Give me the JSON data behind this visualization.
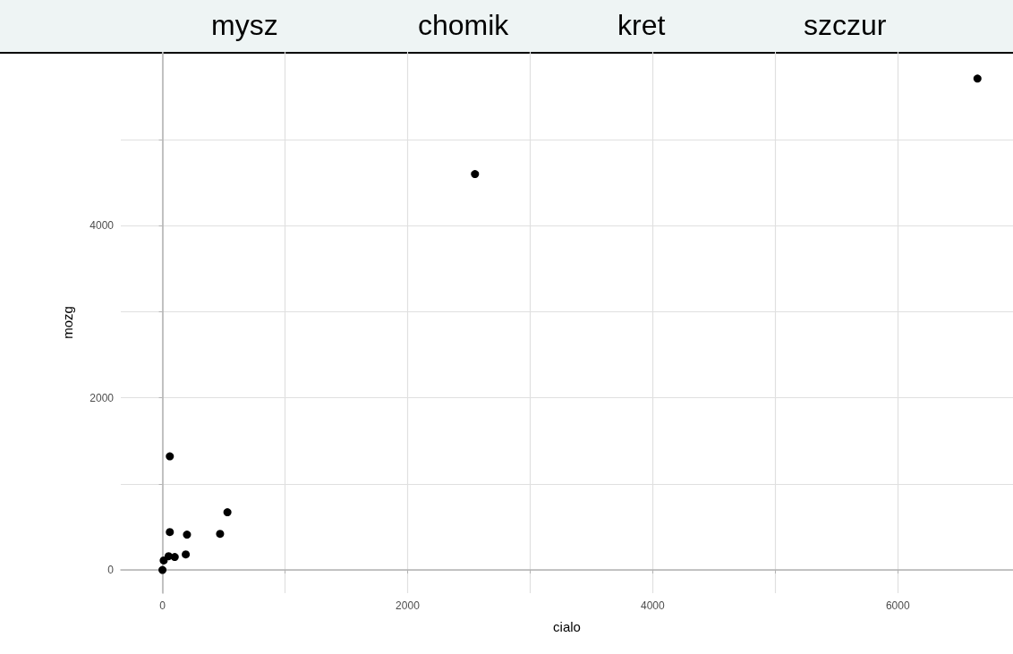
{
  "chart_data": {
    "type": "scatter",
    "xlabel": "cialo",
    "ylabel": "mozg",
    "annotations": [
      "mysz",
      "chomik",
      "kret",
      "szczur"
    ],
    "x": [
      0,
      10,
      50,
      100,
      190,
      60,
      200,
      470,
      530,
      60,
      2550,
      6650
    ],
    "values": [
      0,
      110,
      160,
      150,
      180,
      440,
      410,
      420,
      670,
      1320,
      4600,
      5710
    ],
    "color": "#000000",
    "marker": "circle",
    "grid": true,
    "xlim": [
      -340,
      6940
    ],
    "ylim": [
      -270,
      6020
    ],
    "xticks": [
      0,
      {
        "value": 1000,
        "label": null
      },
      2000,
      {
        "value": 3000,
        "label": null
      },
      4000,
      {
        "value": 5000,
        "label": null
      },
      6000
    ],
    "yticks": [
      0,
      {
        "value": 1000,
        "label": null
      },
      2000,
      {
        "value": 3000,
        "label": null
      },
      4000,
      {
        "value": 5000,
        "label": null
      }
    ]
  }
}
